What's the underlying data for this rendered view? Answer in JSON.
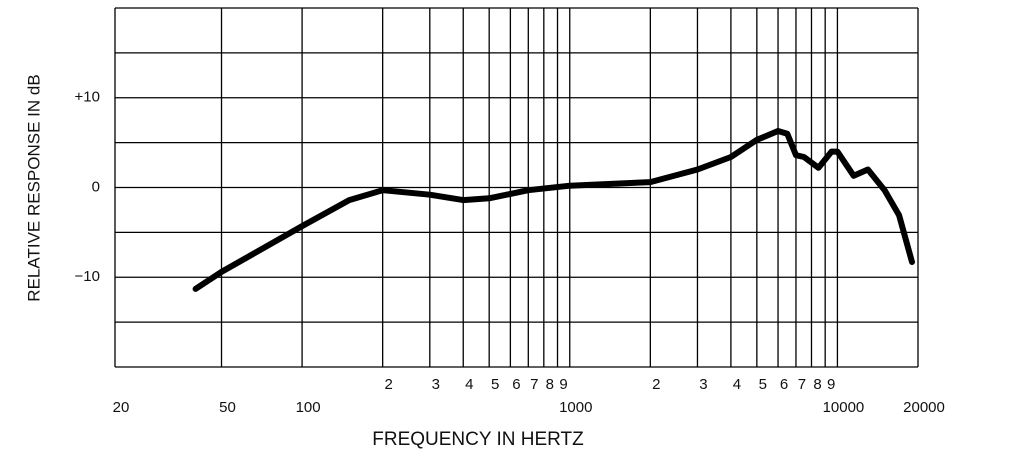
{
  "chart_data": {
    "type": "line",
    "x_label": "FREQUENCY IN HERTZ",
    "y_label": "RELATIVE RESPONSE IN dB",
    "x": [
      40,
      50,
      100,
      150,
      200,
      300,
      400,
      500,
      700,
      1000,
      2000,
      3000,
      4000,
      5000,
      6000,
      6500,
      7000,
      7500,
      8500,
      9500,
      10000,
      11500,
      13000,
      15000,
      17000,
      19000
    ],
    "values": [
      -11.3,
      -9.4,
      -4.3,
      -1.4,
      -0.3,
      -0.8,
      -1.4,
      -1.2,
      -0.3,
      0.2,
      0.6,
      2.0,
      3.4,
      5.3,
      6.3,
      6.0,
      3.6,
      3.4,
      2.2,
      4.0,
      4.0,
      1.3,
      2.0,
      -0.3,
      -3.1,
      -8.3
    ],
    "color": "#000000",
    "x_log": true,
    "grid": true,
    "xlim": [
      20,
      20000
    ],
    "ylim": [
      -20,
      20
    ],
    "xticks": [
      20,
      50,
      100,
      {
        "value": 200,
        "label": "2"
      },
      {
        "value": 300,
        "label": "3"
      },
      {
        "value": 400,
        "label": "4"
      },
      {
        "value": 500,
        "label": "5"
      },
      {
        "value": 600,
        "label": "6"
      },
      {
        "value": 700,
        "label": "7"
      },
      {
        "value": 800,
        "label": "8"
      },
      {
        "value": 900,
        "label": "9"
      },
      1000,
      {
        "value": 2000,
        "label": "2"
      },
      {
        "value": 3000,
        "label": "3"
      },
      {
        "value": 4000,
        "label": "4"
      },
      {
        "value": 5000,
        "label": "5"
      },
      {
        "value": 6000,
        "label": "6"
      },
      {
        "value": 7000,
        "label": "7"
      },
      {
        "value": 8000,
        "label": "8"
      },
      {
        "value": 9000,
        "label": "9"
      },
      10000,
      20000
    ],
    "yticks": [
      {
        "value": -20,
        "label": null
      },
      {
        "value": -15,
        "label": null
      },
      {
        "value": -10,
        "label": "−10"
      },
      {
        "value": -5,
        "label": null
      },
      0,
      {
        "value": 5,
        "label": null
      },
      {
        "value": 10,
        "label": "+10"
      },
      {
        "value": 15,
        "label": null
      },
      {
        "value": 20,
        "label": null
      }
    ]
  }
}
